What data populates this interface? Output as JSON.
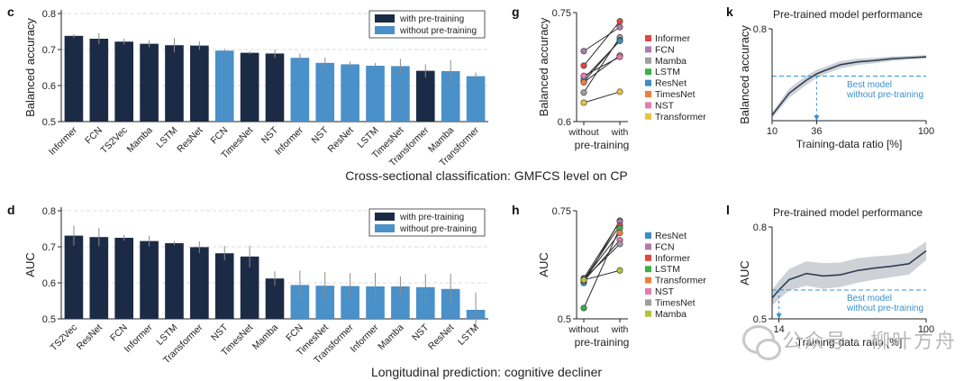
{
  "colors": {
    "dark": "#1c2b45",
    "light": "#4a90c9",
    "err": "#8a8a8a",
    "ref": "#3a8fcf",
    "axis": "#222222"
  },
  "captions": {
    "top": "Cross-sectional classification: GMFCS level on CP",
    "bottom": "Longitudinal prediction: cognitive decliner"
  },
  "watermark": "公众号 · 柳叶方舟",
  "chart_data": [
    {
      "id": "c",
      "panel_label": "c",
      "type": "bar",
      "ylabel": "Balanced accuracy",
      "ylim": [
        0.5,
        0.8
      ],
      "yticks": [
        "0.5",
        "0.6",
        "0.7",
        "0.8"
      ],
      "legend": [
        "with pre-training",
        "without pre-training"
      ],
      "categories": [
        "Informer",
        "FCN",
        "TS2Vec",
        "Mamba",
        "LSTM",
        "ResNet",
        "FCN",
        "TimesNet",
        "NST",
        "Informer",
        "NST",
        "ResNet",
        "LSTM",
        "TimesNet",
        "Transformer",
        "Mamba",
        "Transformer"
      ],
      "values": [
        0.738,
        0.73,
        0.722,
        0.716,
        0.712,
        0.711,
        0.697,
        0.691,
        0.689,
        0.677,
        0.663,
        0.659,
        0.655,
        0.654,
        0.641,
        0.64,
        0.626
      ],
      "errors": [
        0.005,
        0.015,
        0.008,
        0.01,
        0.02,
        0.012,
        0.005,
        0.004,
        0.012,
        0.012,
        0.015,
        0.008,
        0.008,
        0.02,
        0.018,
        0.03,
        0.01
      ],
      "pretrained": [
        1,
        1,
        1,
        1,
        1,
        1,
        0,
        1,
        1,
        0,
        0,
        0,
        0,
        0,
        1,
        0,
        0
      ]
    },
    {
      "id": "d",
      "panel_label": "d",
      "type": "bar",
      "ylabel": "AUC",
      "ylim": [
        0.5,
        0.8
      ],
      "yticks": [
        "0.5",
        "0.6",
        "0.7",
        "0.8"
      ],
      "legend": [
        "with pre-training",
        "without pre-training"
      ],
      "categories": [
        "TS2Vec",
        "ResNet",
        "FCN",
        "Informer",
        "LSTM",
        "Transformer",
        "NST",
        "TimesNet",
        "Mamba",
        "FCN",
        "TimesNet",
        "Transformer",
        "Informer",
        "Mamba",
        "NST",
        "ResNet",
        "LSTM"
      ],
      "values": [
        0.731,
        0.727,
        0.725,
        0.716,
        0.71,
        0.699,
        0.682,
        0.673,
        0.612,
        0.594,
        0.592,
        0.591,
        0.59,
        0.59,
        0.588,
        0.583,
        0.525
      ],
      "errors": [
        0.028,
        0.025,
        0.008,
        0.015,
        0.006,
        0.016,
        0.02,
        0.03,
        0.02,
        0.04,
        0.038,
        0.036,
        0.038,
        0.028,
        0.036,
        0.042,
        0.048
      ],
      "pretrained": [
        1,
        1,
        1,
        1,
        1,
        1,
        1,
        1,
        1,
        0,
        0,
        0,
        0,
        0,
        0,
        0,
        0
      ]
    },
    {
      "id": "g",
      "panel_label": "g",
      "type": "line",
      "ylabel": "Balanced accuracy",
      "xlabel": "pre-training",
      "x": [
        "without",
        "with"
      ],
      "ylim": [
        0.6,
        0.75
      ],
      "yticks": [
        "0.6",
        "0.75"
      ],
      "series": [
        {
          "name": "Informer",
          "color": "#e0483f",
          "values": [
            0.677,
            0.738
          ]
        },
        {
          "name": "FCN",
          "color": "#b07ab0",
          "values": [
            0.697,
            0.73
          ]
        },
        {
          "name": "Mamba",
          "color": "#9e9e9e",
          "values": [
            0.64,
            0.716
          ]
        },
        {
          "name": "LSTM",
          "color": "#3fae49",
          "values": [
            0.655,
            0.712
          ]
        },
        {
          "name": "ResNet",
          "color": "#3a8ec5",
          "values": [
            0.659,
            0.711
          ]
        },
        {
          "name": "TimesNet",
          "color": "#f07f3c",
          "values": [
            0.654,
            0.691
          ]
        },
        {
          "name": "NST",
          "color": "#e57bb2",
          "values": [
            0.663,
            0.689
          ]
        },
        {
          "name": "Transformer",
          "color": "#e8c43c",
          "values": [
            0.626,
            0.641
          ]
        }
      ]
    },
    {
      "id": "h",
      "panel_label": "h",
      "type": "line",
      "ylabel": "AUC",
      "xlabel": "pre-training",
      "x": [
        "without",
        "with"
      ],
      "ylim": [
        0.5,
        0.75
      ],
      "yticks": [
        "0.5",
        "0.75"
      ],
      "series": [
        {
          "name": "ResNet",
          "color": "#3a8ec5",
          "values": [
            0.583,
            0.727
          ]
        },
        {
          "name": "FCN",
          "color": "#b07ab0",
          "values": [
            0.594,
            0.725
          ]
        },
        {
          "name": "Informer",
          "color": "#e0483f",
          "values": [
            0.59,
            0.716
          ]
        },
        {
          "name": "LSTM",
          "color": "#3fae49",
          "values": [
            0.525,
            0.71
          ]
        },
        {
          "name": "Transformer",
          "color": "#f07f3c",
          "values": [
            0.591,
            0.699
          ]
        },
        {
          "name": "NST",
          "color": "#e57bb2",
          "values": [
            0.588,
            0.682
          ]
        },
        {
          "name": "TimesNet",
          "color": "#9e9e9e",
          "values": [
            0.592,
            0.673
          ]
        },
        {
          "name": "Mamba",
          "color": "#b5c33a",
          "values": [
            0.59,
            0.612
          ]
        }
      ]
    },
    {
      "id": "k",
      "panel_label": "k",
      "type": "area",
      "title": "Pre-trained model performance",
      "ylabel": "Balanced accuracy",
      "xlabel": "Training-data ratio [%]",
      "xlim": [
        10,
        100
      ],
      "ylim": [
        0.6,
        0.8
      ],
      "xticks": [
        "10",
        "36",
        "100"
      ],
      "yticks": [
        "0.8"
      ],
      "x": [
        10,
        20,
        30,
        36,
        40,
        50,
        60,
        70,
        80,
        90,
        100
      ],
      "y": [
        0.612,
        0.66,
        0.688,
        0.702,
        0.708,
        0.722,
        0.728,
        0.731,
        0.735,
        0.737,
        0.739
      ],
      "band": [
        0.006,
        0.01,
        0.01,
        0.009,
        0.008,
        0.008,
        0.007,
        0.006,
        0.005,
        0.004,
        0.004
      ],
      "reference": {
        "value": 0.697,
        "label": "Best model\nwithout pre-training",
        "x_cross": 36
      }
    },
    {
      "id": "l",
      "panel_label": "l",
      "type": "area",
      "title": "Pre-trained model performance",
      "ylabel": "AUC",
      "xlabel": "Training-data ratio [%]",
      "xlim": [
        10,
        100
      ],
      "ylim": [
        0.5,
        0.8
      ],
      "xticks": [
        "14",
        "100"
      ],
      "yticks": [
        "0.8",
        "0.5"
      ],
      "x": [
        10,
        14,
        20,
        30,
        40,
        50,
        60,
        70,
        80,
        90,
        100
      ],
      "y": [
        0.568,
        0.594,
        0.628,
        0.648,
        0.64,
        0.644,
        0.658,
        0.666,
        0.672,
        0.68,
        0.722
      ],
      "band": [
        0.025,
        0.03,
        0.035,
        0.04,
        0.042,
        0.04,
        0.04,
        0.038,
        0.036,
        0.035,
        0.03
      ],
      "reference": {
        "value": 0.594,
        "label": "Best model\nwithout pre-training",
        "x_cross": 14
      }
    }
  ]
}
